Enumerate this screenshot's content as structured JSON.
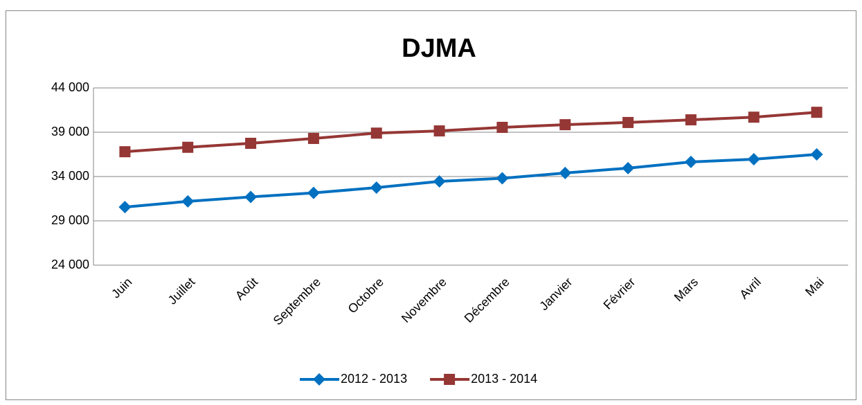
{
  "chart_data": {
    "type": "line",
    "title": "DJMA",
    "categories": [
      "Juin",
      "Juillet",
      "Août",
      "Septembre",
      "Octobre",
      "Novembre",
      "Décembre",
      "Janvier",
      "Février",
      "Mars",
      "Avril",
      "Mai"
    ],
    "series": [
      {
        "name": "2012 - 2013",
        "color": "#0070c0",
        "marker": "diamond",
        "values": [
          30550,
          31200,
          31700,
          32150,
          32750,
          33450,
          33800,
          34400,
          34950,
          35650,
          35950,
          36500
        ]
      },
      {
        "name": "2013 - 2014",
        "color": "#953735",
        "marker": "square",
        "values": [
          36800,
          37300,
          37750,
          38300,
          38900,
          39150,
          39550,
          39850,
          40100,
          40400,
          40700,
          41250
        ]
      }
    ],
    "ylim": [
      24000,
      44000
    ],
    "yticks": [
      {
        "value": 24000,
        "label": "24 000"
      },
      {
        "value": 29000,
        "label": "29 000"
      },
      {
        "value": 34000,
        "label": "34 000"
      },
      {
        "value": 39000,
        "label": "39 000"
      },
      {
        "value": 44000,
        "label": "44 000"
      }
    ],
    "grid": true,
    "legend": "bottom"
  }
}
